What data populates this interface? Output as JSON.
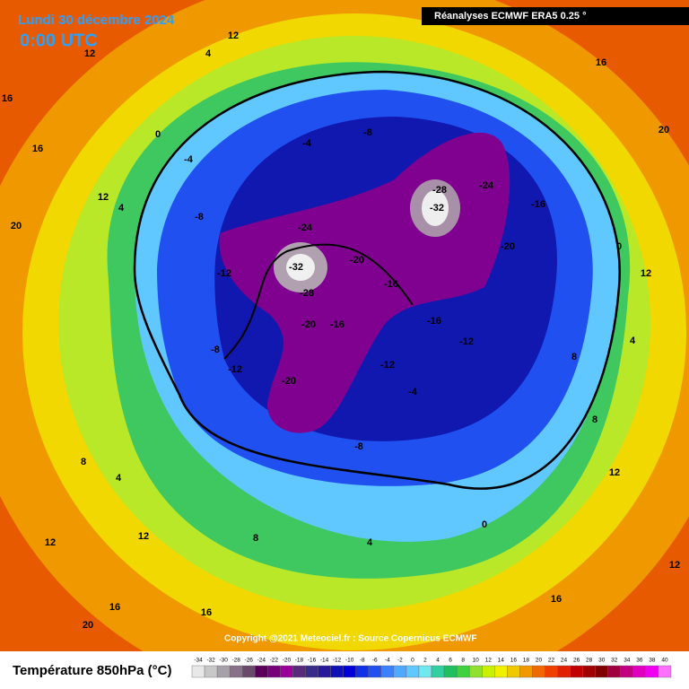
{
  "header": {
    "date": "Lundi 30 décembre 2024",
    "time": "0:00 UTC",
    "source_label": "Réanalyses ECMWF ERA5 0.25 °",
    "copyright": "Copyright @2021 Meteociel.fr : Source Copernicus ECMWF"
  },
  "legend": {
    "title": "Température 850hPa (°C)",
    "ticks": [
      -34,
      -32,
      -30,
      -28,
      -26,
      -24,
      -22,
      -20,
      -18,
      -16,
      -14,
      -12,
      -10,
      -8,
      -6,
      -4,
      -2,
      0,
      2,
      4,
      6,
      8,
      10,
      12,
      14,
      16,
      18,
      20,
      22,
      24,
      26,
      28,
      30,
      32,
      34,
      36,
      38,
      40
    ],
    "colors": [
      "#e8e8e8",
      "#c8c8c8",
      "#a8a0a8",
      "#887088",
      "#6a4a6a",
      "#5a005a",
      "#780078",
      "#9a009a",
      "#5a2a7a",
      "#3a2a8a",
      "#28189a",
      "#1010b8",
      "#0000d8",
      "#1030e8",
      "#2050f0",
      "#3a80ff",
      "#50a8ff",
      "#60c8ff",
      "#70e8f0",
      "#30d0a0",
      "#20c060",
      "#40d040",
      "#90e030",
      "#c8f000",
      "#f0f000",
      "#f0c800",
      "#f09800",
      "#f06800",
      "#f04000",
      "#e02000",
      "#c00000",
      "#a00000",
      "#800000",
      "#a00040",
      "#c00080",
      "#e000c0",
      "#f000f0",
      "#ff70ff"
    ]
  },
  "map_labels": [
    16,
    16,
    20,
    12,
    4,
    0,
    -4,
    -4,
    -8,
    -8,
    -12,
    -12,
    -8,
    -24,
    -32,
    -28,
    -20,
    -16,
    -20,
    -16,
    -20,
    -24,
    -28,
    -32,
    -16,
    -20,
    -16,
    -12,
    -12,
    -8,
    -4,
    0,
    4,
    8,
    12,
    16,
    16,
    12,
    8,
    4,
    0,
    12,
    16,
    20,
    20,
    16,
    12,
    8,
    4,
    8,
    12,
    12,
    4,
    12
  ]
}
